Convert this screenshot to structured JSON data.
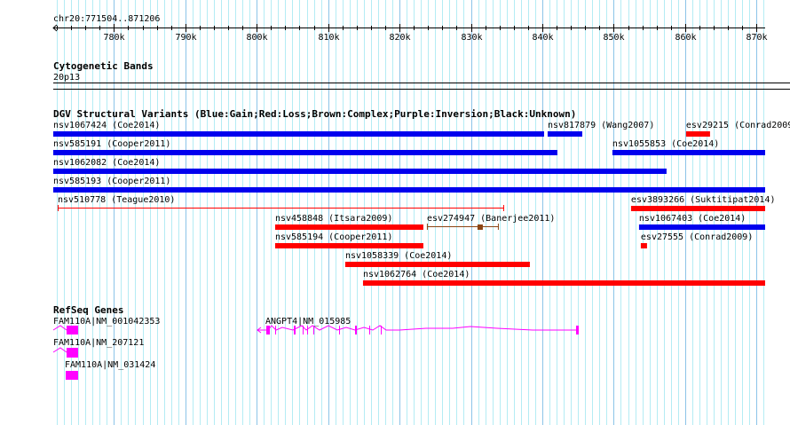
{
  "ruler": {
    "location": "chr20:771504..871206",
    "start": 771504,
    "end": 871206,
    "ticks": [
      "780k",
      "790k",
      "800k",
      "810k",
      "820k",
      "830k",
      "840k",
      "850k",
      "860k",
      "870k"
    ]
  },
  "cytoband_track": {
    "title": "Cytogenetic Bands",
    "band": "20p13"
  },
  "dgv_track": {
    "title": "DGV Structural Variants (Blue:Gain;Red:Loss;Brown:Complex;Purple:Inversion;Black:Unknown)",
    "colors": {
      "gain": "#0000ee",
      "loss": "#ff0000",
      "complex": "#8b4513"
    },
    "features": [
      {
        "label": "nsv1067424 (Coe2014)",
        "type": "gain",
        "row": 0,
        "start": 771504,
        "end": 840244
      },
      {
        "label": "nsv817879 (Wang2007)",
        "type": "gain",
        "row": 0,
        "start": 840741,
        "end": 845592
      },
      {
        "label": "esv29215 (Conrad2009)",
        "type": "loss",
        "row": 0,
        "start": 860130,
        "end": 863486
      },
      {
        "label": "nsv585191 (Cooper2011)",
        "type": "gain",
        "row": 1,
        "start": 771504,
        "end": 842108
      },
      {
        "label": "nsv1055853 (Coe2014)",
        "type": "gain",
        "row": 1,
        "start": 849813,
        "end": 871206
      },
      {
        "label": "nsv1062082 (Coe2014)",
        "type": "gain",
        "row": 2,
        "start": 771504,
        "end": 857396
      },
      {
        "label": "nsv585193 (Cooper2011)",
        "type": "gain",
        "row": 3,
        "start": 771504,
        "end": 871206
      },
      {
        "label": "nsv510778 (Teague2010)",
        "type": "loss",
        "style": "line",
        "row": 4,
        "start": 772126,
        "end": 834648
      },
      {
        "label": "esv3893266 (Suktitipat2014)",
        "type": "loss",
        "row": 4,
        "start": 852425,
        "end": 871206
      },
      {
        "label": "nsv458848 (Itsara2009)",
        "type": "loss",
        "row": 5,
        "start": 802579,
        "end": 823337
      },
      {
        "label": "esv274947 (Banerjee2011)",
        "type": "complex",
        "style": "line",
        "row": 5,
        "start": 823834,
        "end": 833902,
        "core": 831292
      },
      {
        "label": "nsv1067403 (Coe2014)",
        "type": "gain",
        "row": 5,
        "start": 853543,
        "end": 871206
      },
      {
        "label": "nsv585194 (Cooper2011)",
        "type": "loss",
        "row": 6,
        "start": 802579,
        "end": 823337
      },
      {
        "label": "esv27555 (Conrad2009)",
        "type": "loss",
        "row": 6,
        "start": 853791,
        "end": 854661
      },
      {
        "label": "nsv1058339 (Coe2014)",
        "type": "loss",
        "row": 7,
        "start": 812399,
        "end": 838253
      },
      {
        "label": "nsv1062764 (Coe2014)",
        "type": "loss",
        "row": 8,
        "start": 814885,
        "end": 871206
      }
    ]
  },
  "refseq_track": {
    "title": "RefSeq Genes",
    "color": "#ff00ff",
    "genes": [
      {
        "label": "FAM110A|NM_001042353"
      },
      {
        "label": "FAM110A|NM_207121"
      },
      {
        "label": "FAM110A|NM_031424"
      },
      {
        "label": "ANGPT4|NM_015985"
      }
    ]
  }
}
